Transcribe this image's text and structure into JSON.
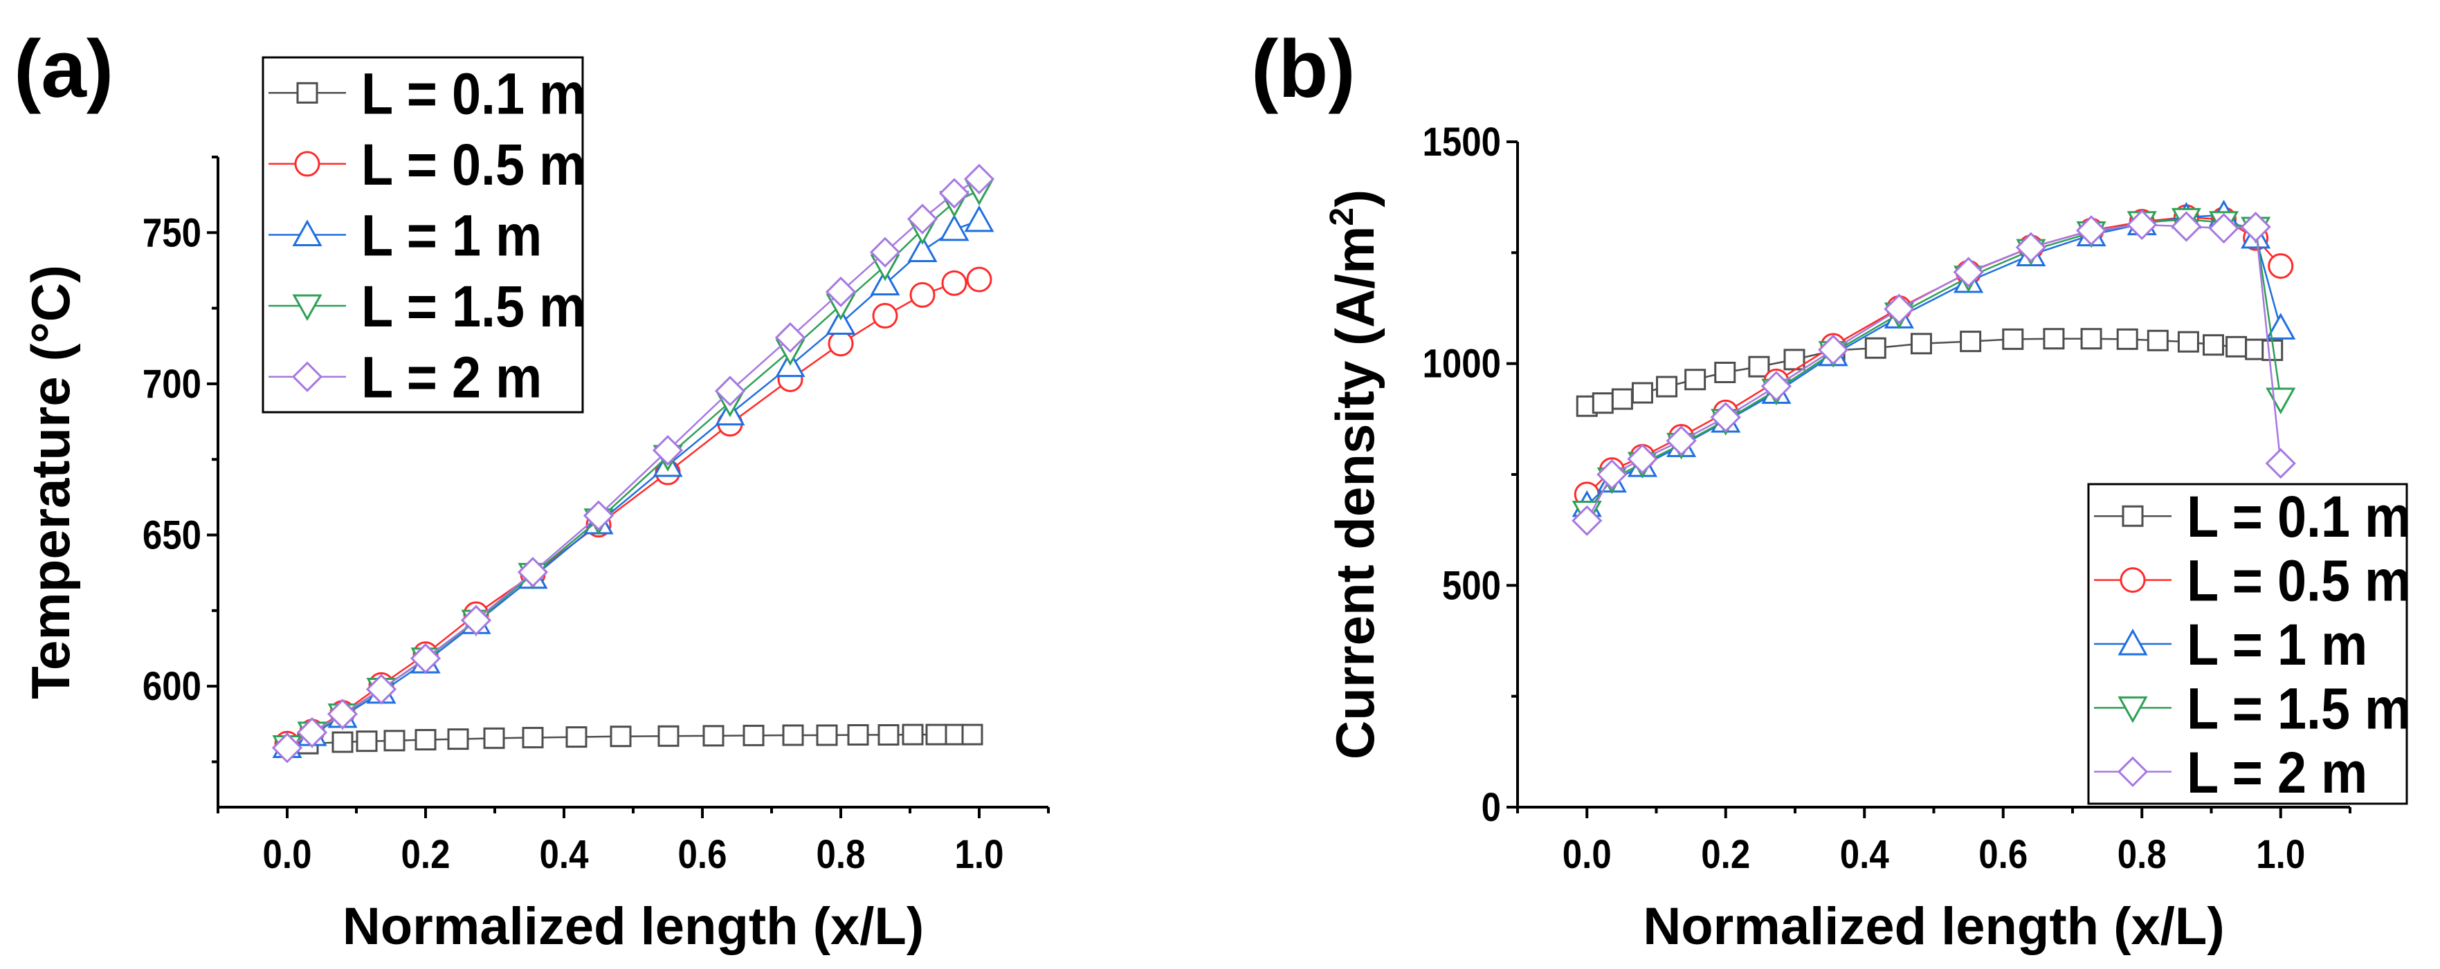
{
  "chart_data": [
    {
      "panel_label": "(a)",
      "type": "line",
      "xlabel": "Normalized length (x/L)",
      "ylabel": "Temperature (°C)",
      "xlim": [
        -0.1,
        1.1
      ],
      "ylim": [
        560,
        775
      ],
      "xticks": [
        0.0,
        0.2,
        0.4,
        0.6,
        0.8,
        1.0
      ],
      "xtick_labels": [
        "0.0",
        "0.2",
        "0.4",
        "0.6",
        "0.8",
        "1.0"
      ],
      "yticks": [
        600,
        650,
        700,
        750
      ],
      "ytick_labels": [
        "600",
        "650",
        "700",
        "750"
      ],
      "legend_position": "top-left",
      "series": [
        {
          "name": "L = 0.1 m",
          "color": "#4d4d4d",
          "marker": "square",
          "x": [
            0,
            0.03,
            0.08,
            0.115,
            0.155,
            0.2,
            0.247,
            0.299,
            0.355,
            0.418,
            0.482,
            0.551,
            0.616,
            0.674,
            0.731,
            0.78,
            0.825,
            0.869,
            0.904,
            0.938,
            0.966,
            0.99
          ],
          "y": [
            580,
            581,
            581.5,
            581.8,
            582,
            582.3,
            582.5,
            582.8,
            583,
            583.2,
            583.4,
            583.5,
            583.6,
            583.7,
            583.8,
            583.8,
            583.9,
            583.9,
            584,
            584,
            584,
            584
          ]
        },
        {
          "name": "L = 0.5 m",
          "color": "#ff2a2a",
          "marker": "circle",
          "x": [
            0,
            0.036,
            0.08,
            0.136,
            0.2,
            0.273,
            0.355,
            0.45,
            0.55,
            0.64,
            0.727,
            0.8,
            0.864,
            0.918,
            0.964,
            1.0
          ],
          "y": [
            581,
            585,
            591.2,
            600.4,
            610.6,
            623.8,
            637,
            653.4,
            670.7,
            686.8,
            701.5,
            713.3,
            722.5,
            729.4,
            733.3,
            734.5
          ]
        },
        {
          "name": "L = 1 m",
          "color": "#1f6fe0",
          "marker": "triangle-up",
          "x": [
            0,
            0.036,
            0.08,
            0.136,
            0.2,
            0.273,
            0.355,
            0.45,
            0.55,
            0.64,
            0.727,
            0.8,
            0.864,
            0.918,
            0.964,
            1.0
          ],
          "y": [
            580,
            584,
            590,
            598,
            608,
            621,
            636,
            654,
            673,
            690,
            706,
            720,
            733,
            744,
            751,
            754
          ]
        },
        {
          "name": "L = 1.5 m",
          "color": "#2ea055",
          "marker": "triangle-down",
          "x": [
            0,
            0.036,
            0.08,
            0.136,
            0.2,
            0.273,
            0.355,
            0.45,
            0.55,
            0.64,
            0.727,
            0.8,
            0.864,
            0.918,
            0.964,
            1.0
          ],
          "y": [
            580,
            584.5,
            590.5,
            599,
            609,
            621.5,
            637,
            655,
            676,
            694,
            711,
            726,
            739,
            751,
            760,
            764
          ]
        },
        {
          "name": "L = 2 m",
          "color": "#a678e0",
          "marker": "diamond",
          "x": [
            0,
            0.036,
            0.08,
            0.136,
            0.2,
            0.273,
            0.355,
            0.45,
            0.55,
            0.64,
            0.727,
            0.8,
            0.864,
            0.918,
            0.964,
            1.0
          ],
          "y": [
            579.6,
            584.7,
            590.8,
            599,
            609.2,
            621.8,
            637.7,
            656.4,
            678,
            697.6,
            715.3,
            730.4,
            743.5,
            754.5,
            763,
            767.7
          ]
        }
      ]
    },
    {
      "panel_label": "(b)",
      "type": "line",
      "xlabel": "Normalized length (x/L)",
      "ylabel": "Current density (A/m",
      "ylabel_sup": "2",
      "ylabel_end": ")",
      "xlim": [
        -0.1,
        1.1
      ],
      "ylim": [
        0,
        1500
      ],
      "xticks": [
        0.0,
        0.2,
        0.4,
        0.6,
        0.8,
        1.0
      ],
      "xtick_labels": [
        "0.0",
        "0.2",
        "0.4",
        "0.6",
        "0.8",
        "1.0"
      ],
      "yticks": [
        0,
        500,
        1000,
        1500
      ],
      "ytick_labels": [
        "0",
        "500",
        "1000",
        "1500"
      ],
      "legend_position": "bottom-right",
      "series": [
        {
          "name": "L = 0.1 m",
          "color": "#4d4d4d",
          "marker": "square",
          "x": [
            0,
            0.023,
            0.051,
            0.08,
            0.115,
            0.156,
            0.199,
            0.248,
            0.299,
            0.357,
            0.416,
            0.482,
            0.553,
            0.614,
            0.673,
            0.727,
            0.779,
            0.823,
            0.867,
            0.903,
            0.936,
            0.964,
            0.988
          ],
          "y": [
            904,
            911,
            920,
            934,
            948,
            964,
            980,
            993,
            1009,
            1030,
            1035,
            1045,
            1050,
            1055,
            1056,
            1056,
            1055,
            1052,
            1049,
            1042,
            1038,
            1032,
            1030
          ]
        },
        {
          "name": "L = 0.5 m",
          "color": "#ff2a2a",
          "marker": "circle",
          "x": [
            0,
            0.036,
            0.08,
            0.136,
            0.2,
            0.273,
            0.355,
            0.45,
            0.55,
            0.64,
            0.727,
            0.8,
            0.864,
            0.918,
            0.964,
            1.0
          ],
          "y": [
            705,
            760,
            790,
            835,
            890,
            960,
            1040,
            1125,
            1205,
            1262,
            1300,
            1320,
            1330,
            1325,
            1283,
            1220
          ]
        },
        {
          "name": "L = 1 m",
          "color": "#1f6fe0",
          "marker": "triangle-up",
          "x": [
            0,
            0.036,
            0.08,
            0.136,
            0.2,
            0.273,
            0.355,
            0.45,
            0.55,
            0.64,
            0.727,
            0.8,
            0.864,
            0.918,
            0.964,
            1.0
          ],
          "y": [
            680,
            735,
            770,
            815,
            870,
            935,
            1020,
            1105,
            1185,
            1245,
            1290,
            1315,
            1330,
            1335,
            1285,
            1080
          ]
        },
        {
          "name": "L = 1.5 m",
          "color": "#2ea055",
          "marker": "triangle-down",
          "x": [
            0,
            0.036,
            0.08,
            0.136,
            0.2,
            0.273,
            0.355,
            0.45,
            0.55,
            0.64,
            0.727,
            0.8,
            0.864,
            0.918,
            0.964,
            1.0
          ],
          "y": [
            665,
            740,
            775,
            818,
            872,
            940,
            1025,
            1112,
            1195,
            1255,
            1295,
            1318,
            1325,
            1318,
            1305,
            920
          ]
        },
        {
          "name": "L = 2 m",
          "color": "#a678e0",
          "marker": "diamond",
          "x": [
            0,
            0.036,
            0.08,
            0.136,
            0.2,
            0.273,
            0.355,
            0.45,
            0.55,
            0.64,
            0.727,
            0.8,
            0.864,
            0.918,
            0.964,
            1.0
          ],
          "y": [
            646,
            750,
            785,
            826,
            879,
            949,
            1031,
            1123,
            1206,
            1262,
            1300,
            1313,
            1309,
            1305,
            1308,
            775
          ]
        }
      ]
    }
  ]
}
